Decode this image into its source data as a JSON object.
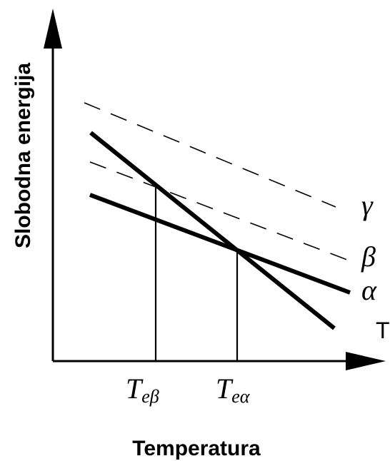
{
  "axes": {
    "x_title": "Temperatura",
    "y_title": "Slobodna energija",
    "x_axis_end_label": "T"
  },
  "phases": {
    "gamma": "γ",
    "beta": "β",
    "alpha": "α"
  },
  "markers": {
    "t_e_beta": {
      "base": "T",
      "sub": "eβ"
    },
    "t_e_alpha": {
      "base": "T",
      "sub": "eα"
    }
  },
  "colors": {
    "ink": "#000000",
    "background": "#ffffff"
  }
}
